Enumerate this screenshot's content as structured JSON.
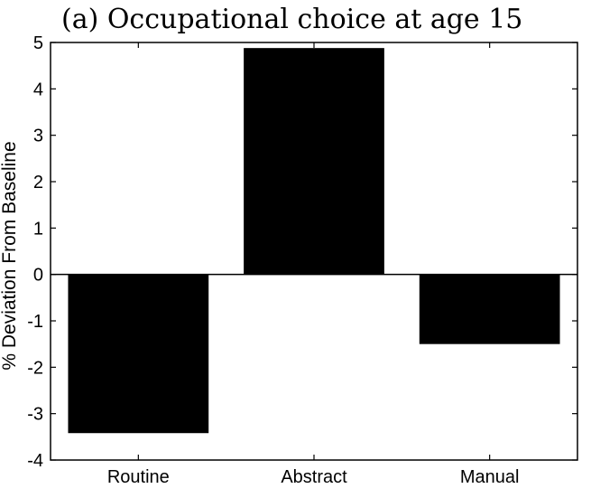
{
  "chart_data": {
    "type": "bar",
    "title": "(a) Occupational choice at age 15",
    "xlabel": "",
    "ylabel": "% Deviation From Baseline",
    "categories": [
      "Routine",
      "Abstract",
      "Manual"
    ],
    "values": [
      -3.42,
      4.88,
      -1.5
    ],
    "ylim": [
      -4,
      5
    ],
    "yticks": [
      -4,
      -3,
      -2,
      -1,
      0,
      1,
      2,
      3,
      4,
      5
    ],
    "bar_color": "#000000",
    "grid": false,
    "legend": "none"
  }
}
